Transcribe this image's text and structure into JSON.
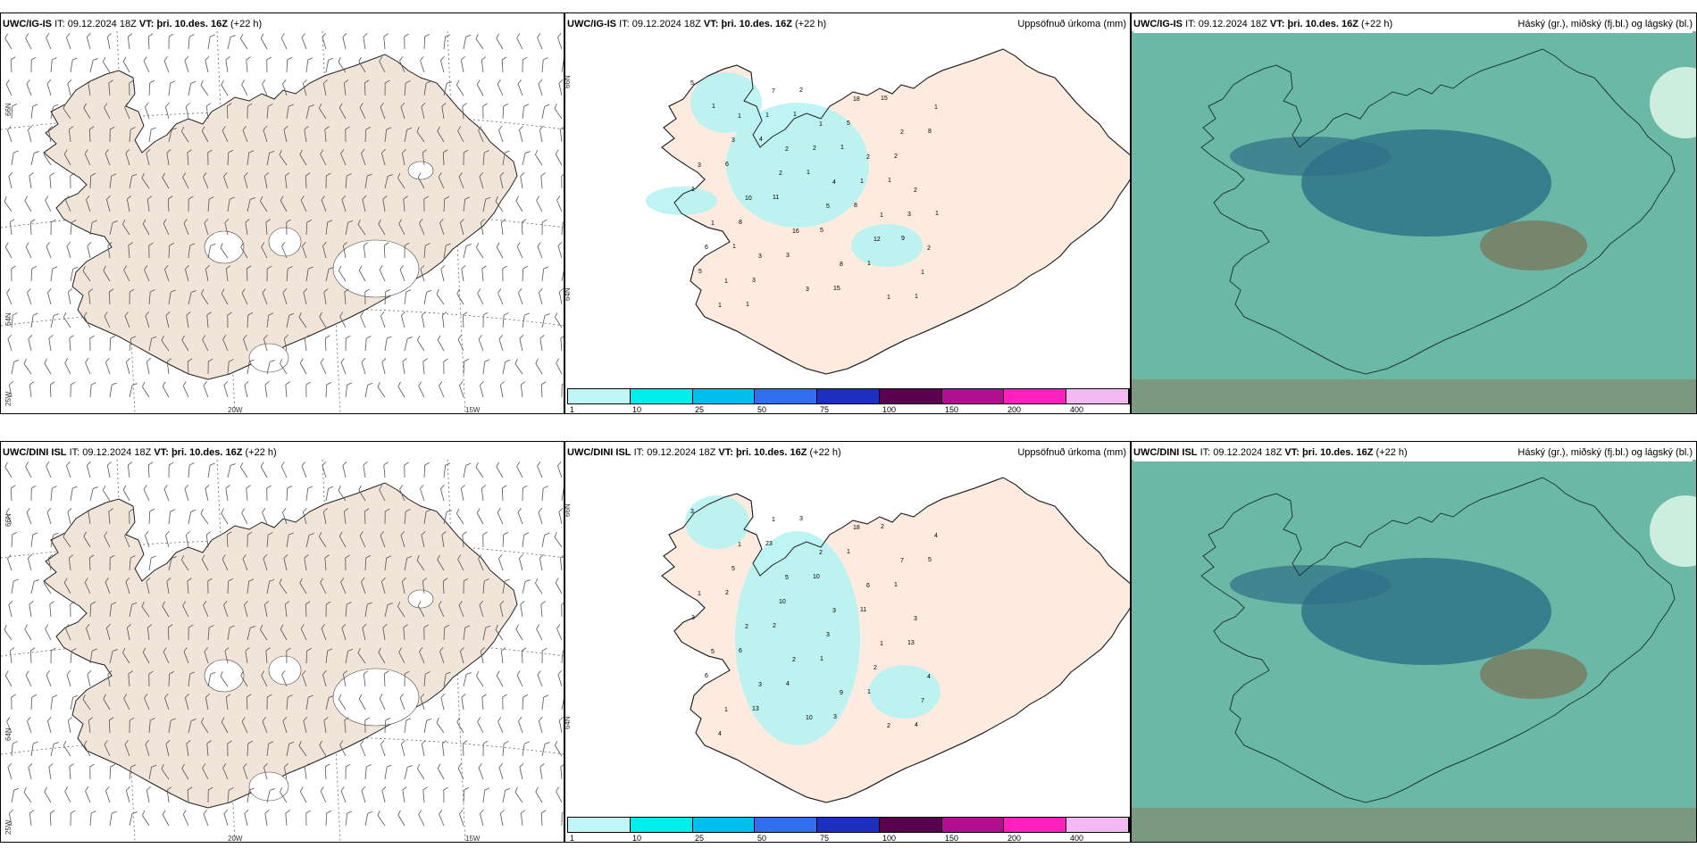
{
  "rows": [
    {
      "model": "UWC/IG-IS",
      "it_label": "IT:",
      "it_value": "09.12.2024 18Z",
      "vt_label": "VT:",
      "vt_value": "þri. 10.des. 16Z",
      "lead": "(+22 h)",
      "left_axis_labels": [
        "66N",
        "64N",
        "25W"
      ],
      "bottom_axis_labels": [
        "20W",
        "15W"
      ],
      "precip_axis_labels": [
        "66N",
        "64N"
      ],
      "precip_values": [
        "5",
        "1",
        "2",
        "4",
        "1",
        "2",
        "1",
        "7",
        "1",
        "2",
        "2",
        "1",
        "3",
        "3",
        "18",
        "2",
        "3",
        "10",
        "16",
        "8",
        "1",
        "1",
        "3",
        "2",
        "5",
        "12",
        "1",
        "1",
        "1",
        "2",
        "1",
        "3",
        "6",
        "3",
        "2",
        "5",
        "2",
        "1",
        "8",
        "3",
        "15",
        "15",
        "8",
        "6",
        "11",
        "5",
        "1",
        "1",
        "1",
        "4",
        "1",
        "8",
        "9",
        "5",
        "1",
        "1",
        "1",
        "1",
        "1",
        "1"
      ]
    },
    {
      "model": "UWC/DINI ISL",
      "it_label": "IT:",
      "it_value": "09.12.2024 18Z",
      "vt_label": "VT:",
      "vt_value": "þri. 10.des. 16Z",
      "lead": "(+22 h)",
      "left_axis_labels": [
        "66N",
        "64N",
        "25W"
      ],
      "bottom_axis_labels": [
        "20W",
        "15W"
      ],
      "precip_axis_labels": [
        "66N",
        "64N"
      ],
      "precip_values": [
        "3",
        "1",
        "5",
        "3",
        "1",
        "4",
        "1",
        "1",
        "2",
        "6",
        "3",
        "5",
        "3",
        "10",
        "18",
        "7",
        "1",
        "2",
        "2",
        "9",
        "2",
        "4",
        "5",
        "10",
        "3",
        "2",
        "7",
        "4",
        "23",
        "10",
        "11",
        "13",
        "6",
        "13",
        "3",
        "1",
        "1",
        "3",
        "6",
        "4",
        "3",
        "2",
        "5",
        "2",
        "2",
        "1",
        "1",
        "4"
      ]
    }
  ],
  "precip_title": "Uppsöfnuð úrkoma (mm)",
  "cloud_title": "Háský (gr.), miðský (fj.bl.) og lágský (bl.)",
  "scale": {
    "labels": [
      "1",
      "10",
      "25",
      "50",
      "75",
      "100",
      "150",
      "200",
      "400"
    ],
    "colors": [
      "#bff7f7",
      "#00eeee",
      "#00c0f0",
      "#3070f0",
      "#1c2fc0",
      "#5a0050",
      "#b0108f",
      "#ff20c0",
      "#f4b8f4"
    ]
  },
  "colors": {
    "land": "#f1e4d8",
    "land_precip": "#fdebe0",
    "precip_light": "#b7f3f3",
    "cloud_bg": "#6bb8a6",
    "cloud_mid": "#2d6f86",
    "cloud_high": "#7a7055"
  }
}
